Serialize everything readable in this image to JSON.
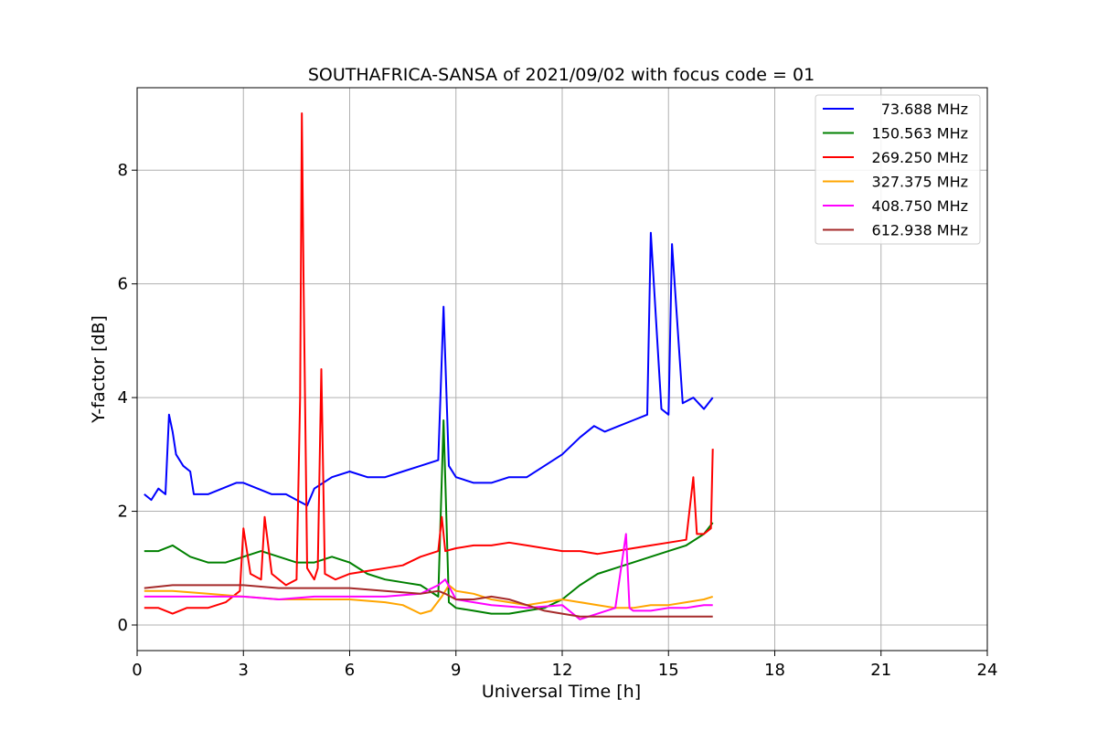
{
  "chart_data": {
    "type": "line",
    "title": "SOUTHAFRICA-SANSA of 2021/09/02 with focus code = 01",
    "xlabel": "Universal Time [h]",
    "ylabel": "Y-factor [dB]",
    "xlim": [
      0,
      24
    ],
    "ylim": [
      -0.45,
      9.45
    ],
    "xticks": [
      0,
      3,
      6,
      9,
      12,
      15,
      18,
      21,
      24
    ],
    "yticks": [
      0,
      2,
      4,
      6,
      8
    ],
    "grid": true,
    "legend_position": "top-right",
    "series": [
      {
        "name": "73.688 MHz",
        "color": "#0000ff",
        "x": [
          0.2,
          0.4,
          0.6,
          0.8,
          0.9,
          1.0,
          1.1,
          1.3,
          1.5,
          1.6,
          1.8,
          2.0,
          2.4,
          2.8,
          3.0,
          3.4,
          3.8,
          4.2,
          4.5,
          4.8,
          5.0,
          5.5,
          6.0,
          6.5,
          7.0,
          7.5,
          8.0,
          8.5,
          8.65,
          8.8,
          9.0,
          9.5,
          10.0,
          10.5,
          11.0,
          11.5,
          12.0,
          12.5,
          12.9,
          13.2,
          13.6,
          14.0,
          14.4,
          14.5,
          14.8,
          15.0,
          15.1,
          15.4,
          15.7,
          16.0,
          16.25
        ],
        "y": [
          2.3,
          2.2,
          2.4,
          2.3,
          3.7,
          3.4,
          3.0,
          2.8,
          2.7,
          2.3,
          2.3,
          2.3,
          2.4,
          2.5,
          2.5,
          2.4,
          2.3,
          2.3,
          2.2,
          2.1,
          2.4,
          2.6,
          2.7,
          2.6,
          2.6,
          2.7,
          2.8,
          2.9,
          5.6,
          2.8,
          2.6,
          2.5,
          2.5,
          2.6,
          2.6,
          2.8,
          3.0,
          3.3,
          3.5,
          3.4,
          3.5,
          3.6,
          3.7,
          6.9,
          3.8,
          3.7,
          6.7,
          3.9,
          4.0,
          3.8,
          4.0
        ]
      },
      {
        "name": "150.563 MHz",
        "color": "#008000",
        "x": [
          0.2,
          0.6,
          1.0,
          1.5,
          2.0,
          2.5,
          3.0,
          3.5,
          4.0,
          4.5,
          5.0,
          5.5,
          6.0,
          6.5,
          7.0,
          7.5,
          8.0,
          8.5,
          8.65,
          8.8,
          9.0,
          9.5,
          10.0,
          10.5,
          11.0,
          11.5,
          12.0,
          12.5,
          13.0,
          13.5,
          14.0,
          14.5,
          15.0,
          15.5,
          16.0,
          16.25
        ],
        "y": [
          1.3,
          1.3,
          1.4,
          1.2,
          1.1,
          1.1,
          1.2,
          1.3,
          1.2,
          1.1,
          1.1,
          1.2,
          1.1,
          0.9,
          0.8,
          0.75,
          0.7,
          0.5,
          3.6,
          0.4,
          0.3,
          0.25,
          0.2,
          0.2,
          0.25,
          0.3,
          0.45,
          0.7,
          0.9,
          1.0,
          1.1,
          1.2,
          1.3,
          1.4,
          1.6,
          1.8
        ]
      },
      {
        "name": "269.250 MHz",
        "color": "#ff0000",
        "x": [
          0.2,
          0.6,
          1.0,
          1.4,
          2.0,
          2.5,
          2.9,
          3.0,
          3.2,
          3.5,
          3.6,
          3.8,
          4.2,
          4.5,
          4.6,
          4.65,
          4.7,
          4.8,
          5.0,
          5.1,
          5.2,
          5.3,
          5.6,
          6.0,
          6.5,
          7.0,
          7.5,
          8.0,
          8.5,
          8.6,
          8.7,
          9.0,
          9.5,
          10.0,
          10.5,
          11.0,
          11.5,
          12.0,
          12.5,
          13.0,
          13.5,
          14.0,
          14.5,
          15.0,
          15.5,
          15.7,
          15.8,
          16.0,
          16.2,
          16.25
        ],
        "y": [
          0.3,
          0.3,
          0.2,
          0.3,
          0.3,
          0.4,
          0.6,
          1.7,
          0.9,
          0.8,
          1.9,
          0.9,
          0.7,
          0.8,
          4.0,
          9.0,
          6.0,
          1.0,
          0.8,
          1.0,
          4.5,
          0.9,
          0.8,
          0.9,
          0.95,
          1.0,
          1.05,
          1.2,
          1.3,
          1.9,
          1.3,
          1.35,
          1.4,
          1.4,
          1.45,
          1.4,
          1.35,
          1.3,
          1.3,
          1.25,
          1.3,
          1.35,
          1.4,
          1.45,
          1.5,
          2.6,
          1.6,
          1.6,
          1.7,
          3.1
        ]
      },
      {
        "name": "327.375 MHz",
        "color": "#ffa500",
        "x": [
          0.2,
          1.0,
          2.0,
          3.0,
          4.0,
          5.0,
          6.0,
          7.0,
          7.5,
          8.0,
          8.3,
          8.6,
          8.8,
          9.0,
          9.5,
          10.0,
          10.5,
          11.0,
          11.5,
          12.0,
          12.5,
          13.0,
          13.5,
          14.0,
          14.5,
          15.0,
          15.5,
          16.0,
          16.25
        ],
        "y": [
          0.6,
          0.6,
          0.55,
          0.5,
          0.45,
          0.45,
          0.45,
          0.4,
          0.35,
          0.2,
          0.25,
          0.5,
          0.7,
          0.6,
          0.55,
          0.45,
          0.4,
          0.35,
          0.4,
          0.45,
          0.4,
          0.35,
          0.3,
          0.3,
          0.35,
          0.35,
          0.4,
          0.45,
          0.5
        ]
      },
      {
        "name": "408.750 MHz",
        "color": "#ff00ff",
        "x": [
          0.2,
          1.0,
          2.0,
          3.0,
          4.0,
          5.0,
          6.0,
          7.0,
          8.0,
          8.5,
          8.7,
          9.0,
          9.5,
          10.0,
          11.0,
          12.0,
          12.5,
          13.0,
          13.5,
          13.8,
          13.9,
          14.0,
          14.5,
          15.0,
          15.5,
          16.0,
          16.25
        ],
        "y": [
          0.5,
          0.5,
          0.5,
          0.5,
          0.45,
          0.5,
          0.5,
          0.5,
          0.55,
          0.7,
          0.8,
          0.45,
          0.4,
          0.35,
          0.3,
          0.35,
          0.1,
          0.2,
          0.3,
          1.6,
          0.3,
          0.25,
          0.25,
          0.3,
          0.3,
          0.35,
          0.35
        ]
      },
      {
        "name": "612.938 MHz",
        "color": "#a52a2a",
        "x": [
          0.2,
          1.0,
          2.0,
          3.0,
          4.0,
          5.0,
          6.0,
          7.0,
          8.0,
          8.5,
          8.7,
          9.0,
          9.5,
          10.0,
          10.5,
          11.0,
          11.5,
          12.0,
          12.5,
          13.0,
          13.5,
          14.0,
          14.5,
          15.0,
          15.5,
          16.0,
          16.25
        ],
        "y": [
          0.65,
          0.7,
          0.7,
          0.7,
          0.65,
          0.65,
          0.65,
          0.6,
          0.55,
          0.6,
          0.55,
          0.45,
          0.45,
          0.5,
          0.45,
          0.35,
          0.25,
          0.2,
          0.15,
          0.15,
          0.15,
          0.15,
          0.15,
          0.15,
          0.15,
          0.15,
          0.15
        ]
      }
    ]
  }
}
